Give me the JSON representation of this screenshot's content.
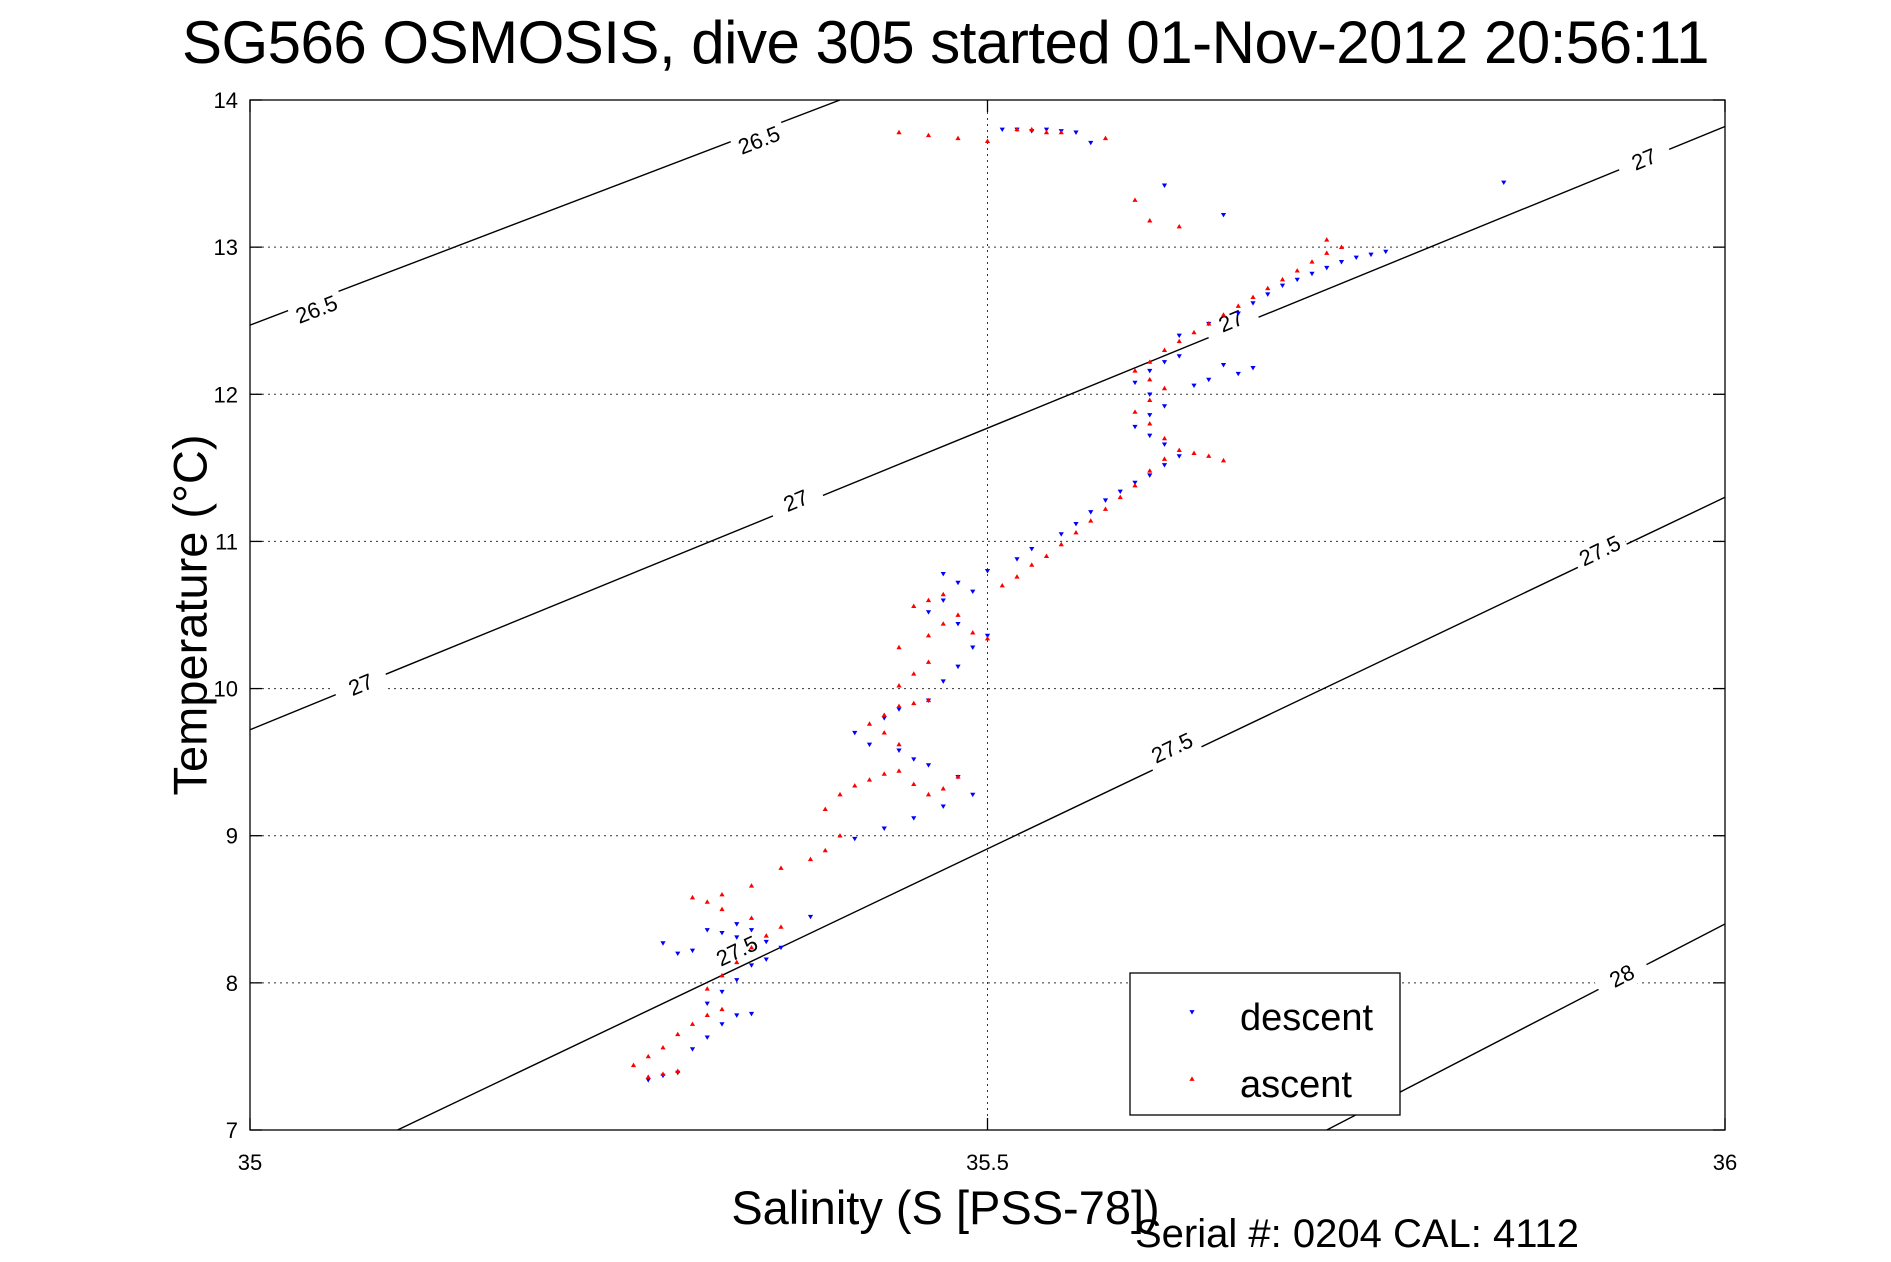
{
  "chart_data": {
    "type": "scatter",
    "title": "SG566 OSMOSIS, dive 305 started 01-Nov-2012 20:56:11",
    "xlabel": "Salinity (S [PSS-78])",
    "ylabel": "Temperature (°C)",
    "footer": "Serial #: 0204  CAL: 4112",
    "xlim": [
      35,
      36
    ],
    "ylim": [
      7,
      14
    ],
    "xticks": [
      35,
      35.5,
      36
    ],
    "xtick_labels": [
      "35",
      "35.5",
      "36"
    ],
    "yticks": [
      7,
      8,
      9,
      10,
      11,
      12,
      13,
      14
    ],
    "ytick_labels": [
      "7",
      "8",
      "9",
      "10",
      "11",
      "12",
      "13",
      "14"
    ],
    "grid": true,
    "legend_position": "bottom-right",
    "isopycnals": [
      {
        "label": "26.5",
        "points": [
          [
            35,
            12.47
          ],
          [
            35.4,
            14
          ]
        ],
        "label_positions": [
          [
            35.045,
            12.58
          ],
          [
            35.345,
            13.73
          ]
        ]
      },
      {
        "label": "27",
        "points": [
          [
            35,
            9.72
          ],
          [
            36,
            13.82
          ]
        ],
        "label_positions": [
          [
            35.075,
            10.03
          ],
          [
            35.37,
            11.28
          ],
          [
            35.665,
            12.5
          ],
          [
            35.945,
            13.6
          ]
        ]
      },
      {
        "label": "27.5",
        "points": [
          [
            35.1,
            7
          ],
          [
            36,
            11.3
          ]
        ],
        "label_positions": [
          [
            35.33,
            8.22
          ],
          [
            35.625,
            9.6
          ],
          [
            35.915,
            10.94
          ]
        ]
      },
      {
        "label": "28",
        "points": [
          [
            35.73,
            7
          ],
          [
            36,
            8.4
          ]
        ],
        "label_positions": [
          [
            35.93,
            8.05
          ]
        ]
      }
    ],
    "series": [
      {
        "name": "descent",
        "color": "#0000ff",
        "marker": "triangle-down",
        "points": [
          [
            35.27,
            7.34
          ],
          [
            35.28,
            7.37
          ],
          [
            35.29,
            7.39
          ],
          [
            35.3,
            7.55
          ],
          [
            35.31,
            7.63
          ],
          [
            35.32,
            7.72
          ],
          [
            35.33,
            7.78
          ],
          [
            35.34,
            7.79
          ],
          [
            35.31,
            7.86
          ],
          [
            35.32,
            7.94
          ],
          [
            35.33,
            8.02
          ],
          [
            35.34,
            8.12
          ],
          [
            35.35,
            8.16
          ],
          [
            35.36,
            8.24
          ],
          [
            35.35,
            8.28
          ],
          [
            35.33,
            8.31
          ],
          [
            35.32,
            8.34
          ],
          [
            35.31,
            8.36
          ],
          [
            35.28,
            8.27
          ],
          [
            35.29,
            8.2
          ],
          [
            35.3,
            8.22
          ],
          [
            35.33,
            8.4
          ],
          [
            35.34,
            8.36
          ],
          [
            35.38,
            8.45
          ],
          [
            35.41,
            8.98
          ],
          [
            35.43,
            9.05
          ],
          [
            35.45,
            9.12
          ],
          [
            35.47,
            9.2
          ],
          [
            35.49,
            9.28
          ],
          [
            35.48,
            9.4
          ],
          [
            35.46,
            9.48
          ],
          [
            35.45,
            9.52
          ],
          [
            35.44,
            9.58
          ],
          [
            35.42,
            9.62
          ],
          [
            35.41,
            9.7
          ],
          [
            35.43,
            9.8
          ],
          [
            35.44,
            9.86
          ],
          [
            35.46,
            9.92
          ],
          [
            35.47,
            10.05
          ],
          [
            35.48,
            10.15
          ],
          [
            35.49,
            10.28
          ],
          [
            35.5,
            10.36
          ],
          [
            35.48,
            10.44
          ],
          [
            35.46,
            10.52
          ],
          [
            35.47,
            10.6
          ],
          [
            35.49,
            10.66
          ],
          [
            35.48,
            10.72
          ],
          [
            35.47,
            10.78
          ],
          [
            35.5,
            10.8
          ],
          [
            35.52,
            10.88
          ],
          [
            35.53,
            10.95
          ],
          [
            35.55,
            11.05
          ],
          [
            35.56,
            11.12
          ],
          [
            35.57,
            11.2
          ],
          [
            35.58,
            11.28
          ],
          [
            35.59,
            11.34
          ],
          [
            35.6,
            11.4
          ],
          [
            35.61,
            11.45
          ],
          [
            35.62,
            11.52
          ],
          [
            35.63,
            11.58
          ],
          [
            35.62,
            11.66
          ],
          [
            35.61,
            11.72
          ],
          [
            35.6,
            11.78
          ],
          [
            35.61,
            11.86
          ],
          [
            35.62,
            11.92
          ],
          [
            35.61,
            12.0
          ],
          [
            35.6,
            12.08
          ],
          [
            35.61,
            12.16
          ],
          [
            35.62,
            12.22
          ],
          [
            35.63,
            12.26
          ],
          [
            35.65,
            12.1
          ],
          [
            35.67,
            12.14
          ],
          [
            35.68,
            12.18
          ],
          [
            35.66,
            12.2
          ],
          [
            35.64,
            12.06
          ],
          [
            35.63,
            12.4
          ],
          [
            35.65,
            12.48
          ],
          [
            35.67,
            12.55
          ],
          [
            35.68,
            12.62
          ],
          [
            35.69,
            12.68
          ],
          [
            35.7,
            12.74
          ],
          [
            35.71,
            12.78
          ],
          [
            35.72,
            12.82
          ],
          [
            35.73,
            12.86
          ],
          [
            35.74,
            12.9
          ],
          [
            35.75,
            12.93
          ],
          [
            35.76,
            12.95
          ],
          [
            35.77,
            12.97
          ],
          [
            35.51,
            13.8
          ],
          [
            35.52,
            13.8
          ],
          [
            35.53,
            13.79
          ],
          [
            35.54,
            13.8
          ],
          [
            35.55,
            13.79
          ],
          [
            35.56,
            13.78
          ],
          [
            35.57,
            13.71
          ],
          [
            35.62,
            13.42
          ],
          [
            35.66,
            13.22
          ],
          [
            35.85,
            13.44
          ]
        ]
      },
      {
        "name": "ascent",
        "color": "#ff0000",
        "marker": "triangle-up",
        "points": [
          [
            35.27,
            7.36
          ],
          [
            35.28,
            7.38
          ],
          [
            35.29,
            7.4
          ],
          [
            35.26,
            7.44
          ],
          [
            35.27,
            7.5
          ],
          [
            35.28,
            7.56
          ],
          [
            35.29,
            7.65
          ],
          [
            35.3,
            7.72
          ],
          [
            35.31,
            7.78
          ],
          [
            35.32,
            7.82
          ],
          [
            35.31,
            7.96
          ],
          [
            35.32,
            8.05
          ],
          [
            35.33,
            8.14
          ],
          [
            35.34,
            8.24
          ],
          [
            35.35,
            8.32
          ],
          [
            35.36,
            8.38
          ],
          [
            35.34,
            8.44
          ],
          [
            35.32,
            8.5
          ],
          [
            35.31,
            8.55
          ],
          [
            35.3,
            8.58
          ],
          [
            35.32,
            8.6
          ],
          [
            35.34,
            8.66
          ],
          [
            35.36,
            8.78
          ],
          [
            35.38,
            8.84
          ],
          [
            35.39,
            8.9
          ],
          [
            35.4,
            9.0
          ],
          [
            35.39,
            9.18
          ],
          [
            35.4,
            9.28
          ],
          [
            35.41,
            9.34
          ],
          [
            35.42,
            9.38
          ],
          [
            35.43,
            9.42
          ],
          [
            35.44,
            9.44
          ],
          [
            35.45,
            9.35
          ],
          [
            35.46,
            9.28
          ],
          [
            35.47,
            9.32
          ],
          [
            35.48,
            9.4
          ],
          [
            35.44,
            9.62
          ],
          [
            35.43,
            9.7
          ],
          [
            35.42,
            9.76
          ],
          [
            35.43,
            9.82
          ],
          [
            35.44,
            9.88
          ],
          [
            35.45,
            9.9
          ],
          [
            35.46,
            9.92
          ],
          [
            35.44,
            10.02
          ],
          [
            35.45,
            10.1
          ],
          [
            35.46,
            10.18
          ],
          [
            35.44,
            10.28
          ],
          [
            35.46,
            10.36
          ],
          [
            35.47,
            10.44
          ],
          [
            35.48,
            10.5
          ],
          [
            35.45,
            10.56
          ],
          [
            35.46,
            10.6
          ],
          [
            35.47,
            10.64
          ],
          [
            35.49,
            10.38
          ],
          [
            35.5,
            10.34
          ],
          [
            35.51,
            10.7
          ],
          [
            35.52,
            10.76
          ],
          [
            35.53,
            10.84
          ],
          [
            35.54,
            10.9
          ],
          [
            35.55,
            10.98
          ],
          [
            35.56,
            11.06
          ],
          [
            35.57,
            11.14
          ],
          [
            35.58,
            11.22
          ],
          [
            35.59,
            11.3
          ],
          [
            35.6,
            11.38
          ],
          [
            35.61,
            11.48
          ],
          [
            35.62,
            11.56
          ],
          [
            35.63,
            11.62
          ],
          [
            35.64,
            11.6
          ],
          [
            35.65,
            11.58
          ],
          [
            35.66,
            11.55
          ],
          [
            35.62,
            11.7
          ],
          [
            35.61,
            11.8
          ],
          [
            35.6,
            11.88
          ],
          [
            35.61,
            11.96
          ],
          [
            35.62,
            12.04
          ],
          [
            35.61,
            12.1
          ],
          [
            35.6,
            12.16
          ],
          [
            35.61,
            12.22
          ],
          [
            35.62,
            12.3
          ],
          [
            35.63,
            12.36
          ],
          [
            35.64,
            12.42
          ],
          [
            35.65,
            12.48
          ],
          [
            35.66,
            12.54
          ],
          [
            35.67,
            12.6
          ],
          [
            35.68,
            12.66
          ],
          [
            35.69,
            12.72
          ],
          [
            35.7,
            12.78
          ],
          [
            35.71,
            12.84
          ],
          [
            35.72,
            12.9
          ],
          [
            35.73,
            12.96
          ],
          [
            35.74,
            13.0
          ],
          [
            35.73,
            13.05
          ],
          [
            35.44,
            13.78
          ],
          [
            35.46,
            13.76
          ],
          [
            35.48,
            13.74
          ],
          [
            35.5,
            13.72
          ],
          [
            35.52,
            13.8
          ],
          [
            35.53,
            13.8
          ],
          [
            35.54,
            13.78
          ],
          [
            35.55,
            13.78
          ],
          [
            35.58,
            13.74
          ],
          [
            35.6,
            13.32
          ],
          [
            35.61,
            13.18
          ],
          [
            35.63,
            13.14
          ]
        ]
      }
    ]
  }
}
